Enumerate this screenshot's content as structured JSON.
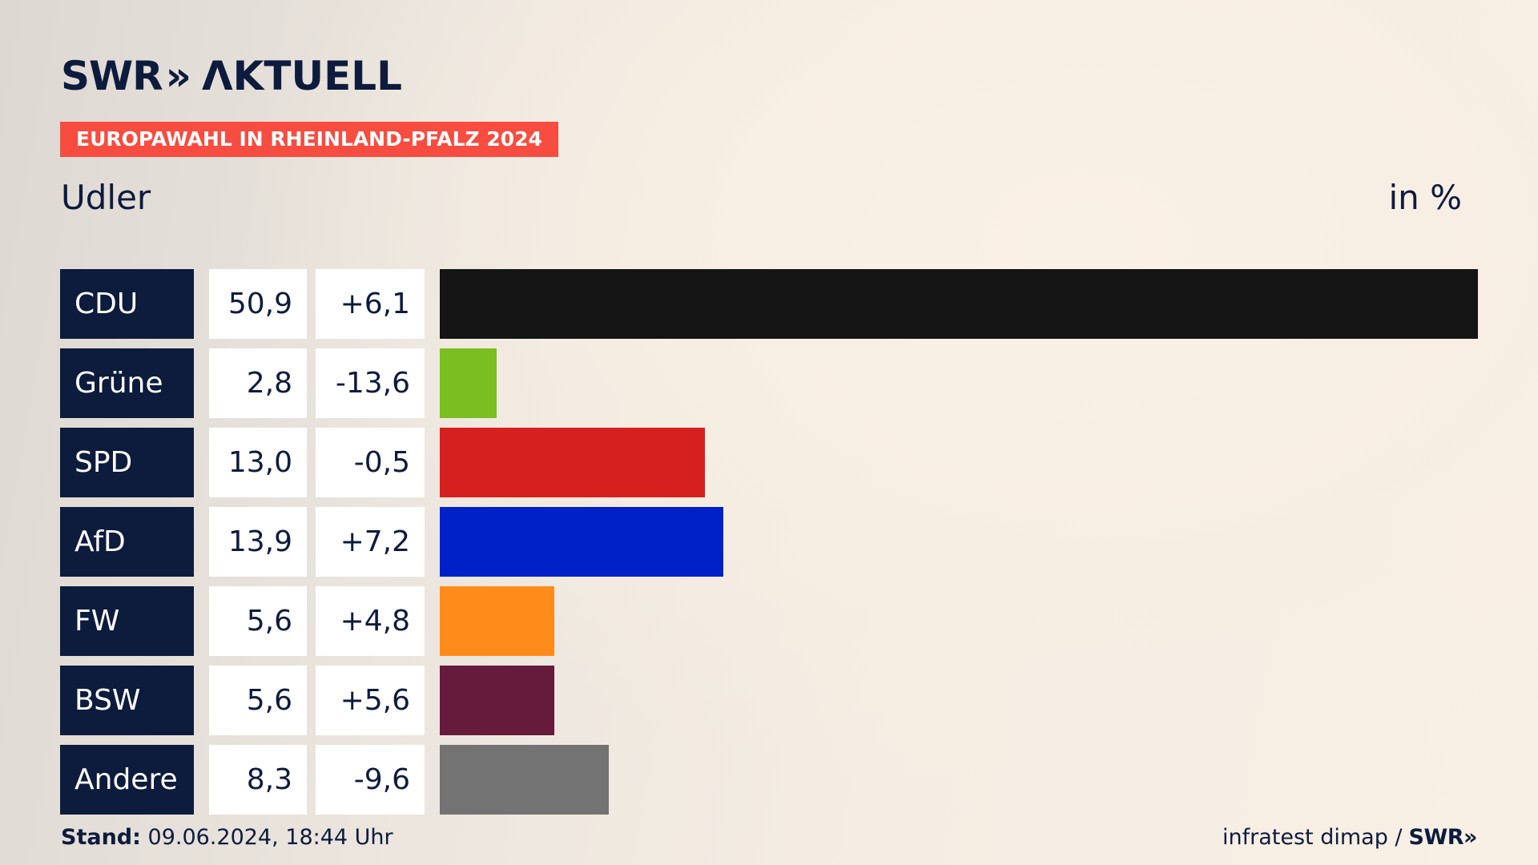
{
  "header": {
    "logo_swr": "SWR",
    "logo_chevrons": "»",
    "logo_aktuell": "ΛKTUELL",
    "tag": "EUROPAWAHL IN RHEINLAND-PFALZ 2024"
  },
  "chart_data": {
    "type": "bar",
    "orientation": "horizontal",
    "title": "Udler",
    "unit_label": "in %",
    "xlim": [
      0,
      50.9
    ],
    "categories": [
      "CDU",
      "Grüne",
      "SPD",
      "AfD",
      "FW",
      "BSW",
      "Andere"
    ],
    "values": [
      50.9,
      2.8,
      13.0,
      13.9,
      5.6,
      5.6,
      8.3
    ],
    "value_labels": [
      "50,9",
      "2,8",
      "13,0",
      "13,9",
      "5,6",
      "5,6",
      "8,3"
    ],
    "changes": [
      6.1,
      -13.6,
      -0.5,
      7.2,
      4.8,
      5.6,
      -9.6
    ],
    "change_labels": [
      "+6,1",
      "-13,6",
      "-0,5",
      "+7,2",
      "+4,8",
      "+5,6",
      "-9,6"
    ],
    "colors": [
      "#141414",
      "#7abf1f",
      "#d61f1f",
      "#0020c8",
      "#ff8c1a",
      "#661a3c",
      "#737373"
    ]
  },
  "footer": {
    "stand_label": "Stand:",
    "stand_value": "09.06.2024, 18:44 Uhr",
    "source": "infratest dimap /",
    "brand": "SWR»"
  }
}
